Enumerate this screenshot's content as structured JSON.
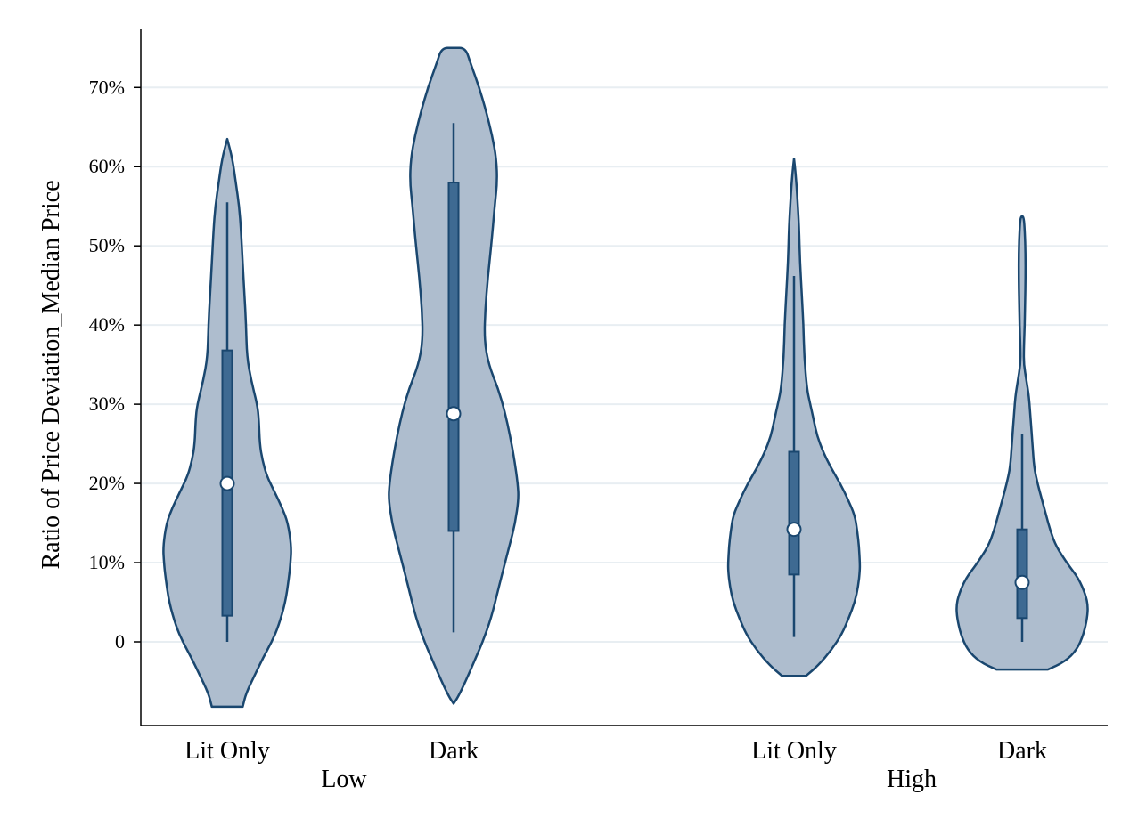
{
  "chart_data": {
    "type": "violin",
    "ylabel": "Ratio of Price Deviation_Median Price",
    "ylim": [
      -0.105,
      0.77
    ],
    "yticks": [
      {
        "value": 0,
        "label": "0"
      },
      {
        "value": 0.1,
        "label": "10%"
      },
      {
        "value": 0.2,
        "label": "20%"
      },
      {
        "value": 0.3,
        "label": "30%"
      },
      {
        "value": 0.4,
        "label": "40%"
      },
      {
        "value": 0.5,
        "label": "50%"
      },
      {
        "value": 0.6,
        "label": "60%"
      },
      {
        "value": 0.7,
        "label": "70%"
      }
    ],
    "grid": true,
    "groups": [
      {
        "label": "Low",
        "categories": [
          "Lit Only",
          "Dark"
        ]
      },
      {
        "label": "High",
        "categories": [
          "Lit Only",
          "Dark"
        ]
      }
    ],
    "colors": {
      "violin_fill": "#aebdce",
      "violin_stroke": "#1a476f",
      "box_fill": "#3e6a92",
      "grid": "#e8eef2",
      "median_marker": "#ffffff"
    },
    "series": [
      {
        "group": "Low",
        "category": "Lit Only",
        "median": 0.2,
        "q1": 0.033,
        "q3": 0.368,
        "whisker_low": 0.0,
        "whisker_high": 0.555,
        "density": [
          [
            -0.082,
            0.18
          ],
          [
            -0.065,
            0.22
          ],
          [
            -0.04,
            0.33
          ],
          [
            -0.02,
            0.42
          ],
          [
            0.0,
            0.52
          ],
          [
            0.02,
            0.6
          ],
          [
            0.05,
            0.68
          ],
          [
            0.08,
            0.72
          ],
          [
            0.1,
            0.74
          ],
          [
            0.12,
            0.75
          ],
          [
            0.15,
            0.71
          ],
          [
            0.17,
            0.64
          ],
          [
            0.19,
            0.55
          ],
          [
            0.21,
            0.46
          ],
          [
            0.23,
            0.41
          ],
          [
            0.25,
            0.38
          ],
          [
            0.28,
            0.37
          ],
          [
            0.3,
            0.35
          ],
          [
            0.33,
            0.28
          ],
          [
            0.36,
            0.23
          ],
          [
            0.4,
            0.22
          ],
          [
            0.44,
            0.2
          ],
          [
            0.48,
            0.18
          ],
          [
            0.52,
            0.16
          ],
          [
            0.55,
            0.14
          ],
          [
            0.58,
            0.1
          ],
          [
            0.61,
            0.06
          ],
          [
            0.635,
            0.0
          ]
        ]
      },
      {
        "group": "Low",
        "category": "Dark",
        "median": 0.288,
        "q1": 0.14,
        "q3": 0.58,
        "whisker_low": 0.012,
        "whisker_high": 0.655,
        "density": [
          [
            -0.078,
            0.0
          ],
          [
            -0.07,
            0.05
          ],
          [
            -0.05,
            0.14
          ],
          [
            -0.02,
            0.26
          ],
          [
            0.0,
            0.34
          ],
          [
            0.03,
            0.44
          ],
          [
            0.07,
            0.53
          ],
          [
            0.12,
            0.65
          ],
          [
            0.15,
            0.72
          ],
          [
            0.18,
            0.76
          ],
          [
            0.2,
            0.75
          ],
          [
            0.23,
            0.71
          ],
          [
            0.26,
            0.66
          ],
          [
            0.29,
            0.6
          ],
          [
            0.32,
            0.52
          ],
          [
            0.35,
            0.41
          ],
          [
            0.38,
            0.36
          ],
          [
            0.42,
            0.37
          ],
          [
            0.46,
            0.4
          ],
          [
            0.5,
            0.44
          ],
          [
            0.55,
            0.48
          ],
          [
            0.58,
            0.51
          ],
          [
            0.61,
            0.5
          ],
          [
            0.64,
            0.45
          ],
          [
            0.67,
            0.38
          ],
          [
            0.7,
            0.3
          ],
          [
            0.73,
            0.2
          ],
          [
            0.75,
            0.14
          ],
          [
            0.75,
            0.0
          ]
        ]
      },
      {
        "group": "High",
        "category": "Lit Only",
        "median": 0.142,
        "q1": 0.085,
        "q3": 0.24,
        "whisker_low": 0.006,
        "whisker_high": 0.462,
        "density": [
          [
            -0.043,
            0.14
          ],
          [
            -0.03,
            0.28
          ],
          [
            -0.01,
            0.44
          ],
          [
            0.01,
            0.56
          ],
          [
            0.03,
            0.64
          ],
          [
            0.05,
            0.71
          ],
          [
            0.07,
            0.75
          ],
          [
            0.09,
            0.77
          ],
          [
            0.1,
            0.77
          ],
          [
            0.12,
            0.76
          ],
          [
            0.14,
            0.74
          ],
          [
            0.16,
            0.71
          ],
          [
            0.18,
            0.63
          ],
          [
            0.2,
            0.54
          ],
          [
            0.22,
            0.43
          ],
          [
            0.24,
            0.34
          ],
          [
            0.26,
            0.27
          ],
          [
            0.28,
            0.23
          ],
          [
            0.3,
            0.19
          ],
          [
            0.32,
            0.15
          ],
          [
            0.36,
            0.12
          ],
          [
            0.4,
            0.11
          ],
          [
            0.44,
            0.09
          ],
          [
            0.48,
            0.07
          ],
          [
            0.52,
            0.06
          ],
          [
            0.56,
            0.04
          ],
          [
            0.59,
            0.02
          ],
          [
            0.61,
            0.0
          ]
        ]
      },
      {
        "group": "High",
        "category": "Dark",
        "median": 0.075,
        "q1": 0.03,
        "q3": 0.142,
        "whisker_low": 0.0,
        "whisker_high": 0.262,
        "density": [
          [
            -0.035,
            0.3
          ],
          [
            -0.025,
            0.5
          ],
          [
            -0.01,
            0.64
          ],
          [
            0.01,
            0.72
          ],
          [
            0.03,
            0.76
          ],
          [
            0.045,
            0.77
          ],
          [
            0.06,
            0.74
          ],
          [
            0.08,
            0.66
          ],
          [
            0.1,
            0.52
          ],
          [
            0.12,
            0.4
          ],
          [
            0.14,
            0.33
          ],
          [
            0.16,
            0.28
          ],
          [
            0.18,
            0.23
          ],
          [
            0.2,
            0.18
          ],
          [
            0.22,
            0.14
          ],
          [
            0.25,
            0.12
          ],
          [
            0.28,
            0.1
          ],
          [
            0.31,
            0.08
          ],
          [
            0.33,
            0.05
          ],
          [
            0.35,
            0.02
          ],
          [
            0.37,
            0.02
          ],
          [
            0.4,
            0.03
          ],
          [
            0.43,
            0.035
          ],
          [
            0.46,
            0.04
          ],
          [
            0.49,
            0.04
          ],
          [
            0.52,
            0.03
          ],
          [
            0.535,
            0.02
          ],
          [
            0.538,
            0.0
          ]
        ]
      }
    ]
  }
}
